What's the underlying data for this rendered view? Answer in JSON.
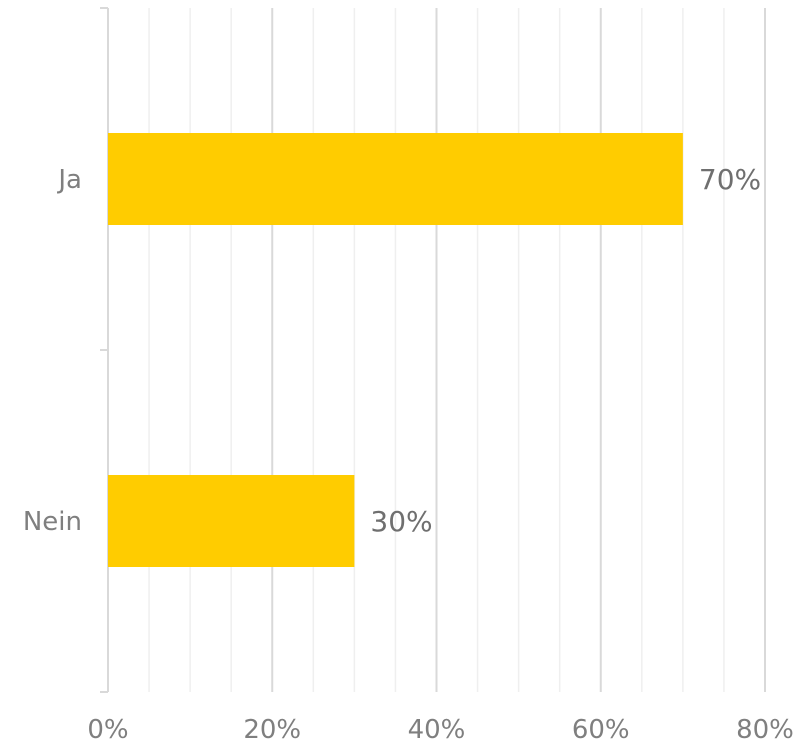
{
  "chart_data": {
    "type": "bar",
    "orientation": "horizontal",
    "categories": [
      "Ja",
      "Nein"
    ],
    "values": [
      70,
      30
    ],
    "value_labels": [
      "70%",
      "30%"
    ],
    "xlim": [
      0,
      80
    ],
    "x_ticks": [
      0,
      20,
      40,
      60,
      80
    ],
    "x_tick_labels": [
      "0%",
      "20%",
      "40%",
      "60%",
      "80%"
    ],
    "minor_tick_step": 5,
    "grid": true,
    "legend": "none",
    "title": "",
    "xlabel": "",
    "ylabel": "",
    "colors": {
      "bar": "#FFCC00",
      "grid_major": "#d9d9d9",
      "grid_minor": "#efefef",
      "axis": "#d9d9d9",
      "text": "#7f7f7f"
    }
  }
}
